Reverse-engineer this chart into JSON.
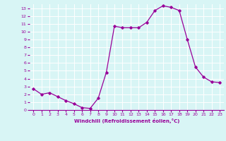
{
  "x": [
    0,
    1,
    2,
    3,
    4,
    5,
    6,
    7,
    8,
    9,
    10,
    11,
    12,
    13,
    14,
    15,
    16,
    17,
    18,
    19,
    20,
    21,
    22,
    23
  ],
  "y": [
    2.7,
    2.0,
    2.2,
    1.7,
    1.2,
    0.8,
    0.3,
    0.2,
    1.5,
    4.8,
    10.7,
    10.5,
    10.5,
    10.5,
    11.2,
    12.7,
    13.3,
    13.1,
    12.7,
    9.0,
    5.5,
    4.2,
    3.6,
    3.5
  ],
  "line_color": "#990099",
  "marker": "D",
  "marker_size": 1.8,
  "bg_color": "#d8f5f5",
  "grid_color": "#ffffff",
  "xlabel": "Windchill (Refroidissement éolien,°C)",
  "xlabel_color": "#990099",
  "tick_color": "#990099",
  "xlim": [
    -0.5,
    23.5
  ],
  "ylim": [
    0,
    13.5
  ],
  "yticks": [
    0,
    1,
    2,
    3,
    4,
    5,
    6,
    7,
    8,
    9,
    10,
    11,
    12,
    13
  ],
  "xticks": [
    0,
    1,
    2,
    3,
    4,
    5,
    6,
    7,
    8,
    9,
    10,
    11,
    12,
    13,
    14,
    15,
    16,
    17,
    18,
    19,
    20,
    21,
    22,
    23
  ],
  "line_width": 0.9
}
